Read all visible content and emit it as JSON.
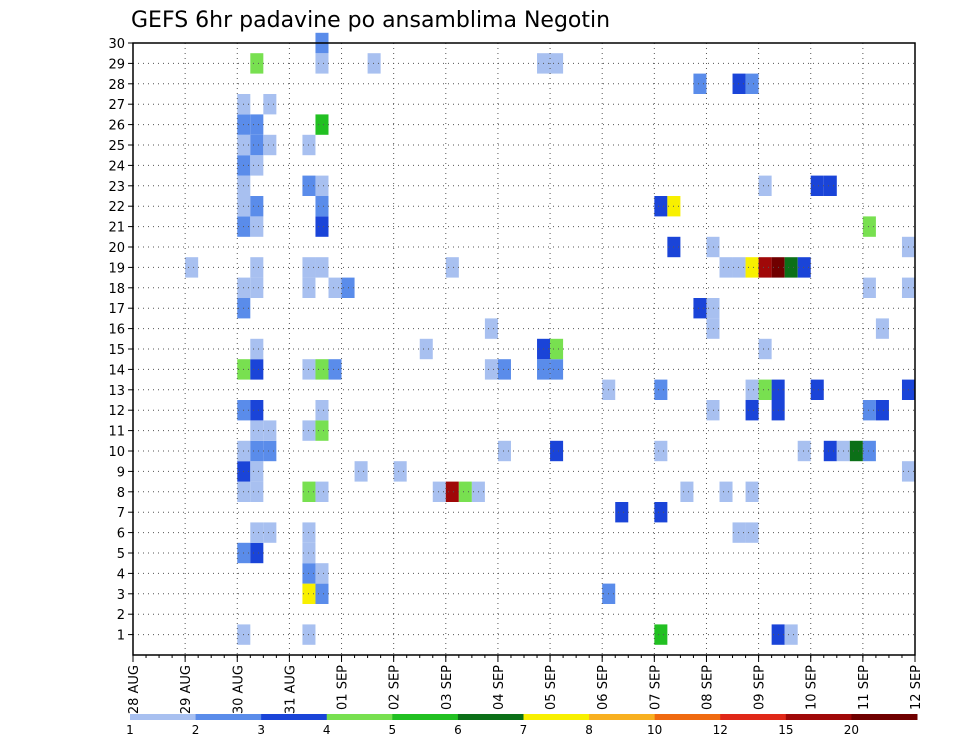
{
  "chart_data": {
    "type": "heatmap",
    "title": "GEFS 6hr padavine po ansamblima Negotin",
    "x_labels": [
      "28 AUG",
      "29 AUG",
      "30 AUG",
      "31 AUG",
      "01 SEP",
      "02 SEP",
      "03 SEP",
      "04 SEP",
      "05 SEP",
      "06 SEP",
      "07 SEP",
      "08 SEP",
      "09 SEP",
      "10 SEP",
      "11 SEP",
      "12 SEP"
    ],
    "x_range": [
      "28 AUG 00Z",
      "12 SEP 00Z"
    ],
    "time_step_hours": 6,
    "y_labels": [
      1,
      2,
      3,
      4,
      5,
      6,
      7,
      8,
      9,
      10,
      11,
      12,
      13,
      14,
      15,
      16,
      17,
      18,
      19,
      20,
      21,
      22,
      23,
      24,
      25,
      26,
      27,
      28,
      29,
      30
    ],
    "y_range": [
      0,
      30
    ],
    "grid": true,
    "legend": {
      "placement": "bottom",
      "labels": [
        "1",
        "2",
        "3",
        "4",
        "5",
        "6",
        "7",
        "8",
        "10",
        "12",
        "15",
        "20"
      ],
      "colors": [
        "#a8c0f0",
        "#5a8cea",
        "#1a44d8",
        "#78e050",
        "#22c022",
        "#0c7018",
        "#f8f000",
        "#f8b020",
        "#f06a10",
        "#e02818",
        "#a00808",
        "#700000"
      ]
    },
    "cells": [
      {
        "m": 1,
        "x": "30 AUG 00Z",
        "c": 0
      },
      {
        "m": 1,
        "x": "31 AUG 06Z",
        "c": 0
      },
      {
        "m": 1,
        "x": "07 SEP 00Z",
        "c": 4
      },
      {
        "m": 1,
        "x": "09 SEP 06Z",
        "c": 2
      },
      {
        "m": 1,
        "x": "09 SEP 12Z",
        "c": 0
      },
      {
        "m": 3,
        "x": "31 AUG 06Z",
        "c": 6
      },
      {
        "m": 3,
        "x": "31 AUG 12Z",
        "c": 1
      },
      {
        "m": 3,
        "x": "06 SEP 00Z",
        "c": 1
      },
      {
        "m": 4,
        "x": "31 AUG 06Z",
        "c": 1
      },
      {
        "m": 4,
        "x": "31 AUG 12Z",
        "c": 0
      },
      {
        "m": 5,
        "x": "30 AUG 00Z",
        "c": 1
      },
      {
        "m": 5,
        "x": "30 AUG 06Z",
        "c": 2
      },
      {
        "m": 5,
        "x": "31 AUG 06Z",
        "c": 0
      },
      {
        "m": 6,
        "x": "30 AUG 06Z",
        "c": 0
      },
      {
        "m": 6,
        "x": "30 AUG 12Z",
        "c": 0
      },
      {
        "m": 6,
        "x": "31 AUG 06Z",
        "c": 0
      },
      {
        "m": 6,
        "x": "08 SEP 12Z",
        "c": 0
      },
      {
        "m": 6,
        "x": "08 SEP 18Z",
        "c": 0
      },
      {
        "m": 7,
        "x": "06 SEP 06Z",
        "c": 2
      },
      {
        "m": 7,
        "x": "07 SEP 00Z",
        "c": 2
      },
      {
        "m": 8,
        "x": "30 AUG 00Z",
        "c": 0
      },
      {
        "m": 8,
        "x": "30 AUG 06Z",
        "c": 0
      },
      {
        "m": 8,
        "x": "31 AUG 06Z",
        "c": 3
      },
      {
        "m": 8,
        "x": "31 AUG 12Z",
        "c": 0
      },
      {
        "m": 8,
        "x": "02 SEP 18Z",
        "c": 0
      },
      {
        "m": 8,
        "x": "03 SEP 00Z",
        "c": 10
      },
      {
        "m": 8,
        "x": "03 SEP 06Z",
        "c": 3
      },
      {
        "m": 8,
        "x": "03 SEP 12Z",
        "c": 0
      },
      {
        "m": 8,
        "x": "07 SEP 12Z",
        "c": 0
      },
      {
        "m": 8,
        "x": "08 SEP 06Z",
        "c": 0
      },
      {
        "m": 8,
        "x": "08 SEP 18Z",
        "c": 0
      },
      {
        "m": 9,
        "x": "30 AUG 00Z",
        "c": 2
      },
      {
        "m": 9,
        "x": "30 AUG 06Z",
        "c": 0
      },
      {
        "m": 9,
        "x": "01 SEP 06Z",
        "c": 0
      },
      {
        "m": 9,
        "x": "02 SEP 00Z",
        "c": 0
      },
      {
        "m": 9,
        "x": "11 SEP 18Z",
        "c": 0
      },
      {
        "m": 9,
        "x": "12 SEP 00Z",
        "c": 2
      },
      {
        "m": 10,
        "x": "30 AUG 00Z",
        "c": 0
      },
      {
        "m": 10,
        "x": "30 AUG 06Z",
        "c": 1
      },
      {
        "m": 10,
        "x": "30 AUG 12Z",
        "c": 1
      },
      {
        "m": 10,
        "x": "04 SEP 00Z",
        "c": 0
      },
      {
        "m": 10,
        "x": "05 SEP 00Z",
        "c": 2
      },
      {
        "m": 10,
        "x": "07 SEP 00Z",
        "c": 0
      },
      {
        "m": 10,
        "x": "09 SEP 18Z",
        "c": 0
      },
      {
        "m": 10,
        "x": "10 SEP 06Z",
        "c": 2
      },
      {
        "m": 10,
        "x": "10 SEP 12Z",
        "c": 0
      },
      {
        "m": 10,
        "x": "10 SEP 18Z",
        "c": 5
      },
      {
        "m": 10,
        "x": "11 SEP 00Z",
        "c": 1
      },
      {
        "m": 11,
        "x": "30 AUG 06Z",
        "c": 0
      },
      {
        "m": 11,
        "x": "30 AUG 12Z",
        "c": 0
      },
      {
        "m": 11,
        "x": "31 AUG 06Z",
        "c": 0
      },
      {
        "m": 11,
        "x": "31 AUG 12Z",
        "c": 3
      },
      {
        "m": 12,
        "x": "30 AUG 00Z",
        "c": 1
      },
      {
        "m": 12,
        "x": "30 AUG 06Z",
        "c": 2
      },
      {
        "m": 12,
        "x": "31 AUG 12Z",
        "c": 0
      },
      {
        "m": 12,
        "x": "08 SEP 00Z",
        "c": 0
      },
      {
        "m": 12,
        "x": "08 SEP 18Z",
        "c": 2
      },
      {
        "m": 12,
        "x": "09 SEP 06Z",
        "c": 2
      },
      {
        "m": 12,
        "x": "11 SEP 00Z",
        "c": 1
      },
      {
        "m": 12,
        "x": "11 SEP 06Z",
        "c": 2
      },
      {
        "m": 13,
        "x": "06 SEP 00Z",
        "c": 0
      },
      {
        "m": 13,
        "x": "07 SEP 00Z",
        "c": 1
      },
      {
        "m": 13,
        "x": "08 SEP 18Z",
        "c": 0
      },
      {
        "m": 13,
        "x": "09 SEP 00Z",
        "c": 3
      },
      {
        "m": 13,
        "x": "09 SEP 06Z",
        "c": 2
      },
      {
        "m": 13,
        "x": "10 SEP 00Z",
        "c": 2
      },
      {
        "m": 13,
        "x": "11 SEP 18Z",
        "c": 2
      },
      {
        "m": 13,
        "x": "12 SEP 00Z",
        "c": 0
      },
      {
        "m": 14,
        "x": "30 AUG 00Z",
        "c": 3
      },
      {
        "m": 14,
        "x": "30 AUG 06Z",
        "c": 2
      },
      {
        "m": 14,
        "x": "31 AUG 06Z",
        "c": 0
      },
      {
        "m": 14,
        "x": "31 AUG 12Z",
        "c": 3
      },
      {
        "m": 14,
        "x": "31 AUG 18Z",
        "c": 1
      },
      {
        "m": 14,
        "x": "03 SEP 18Z",
        "c": 0
      },
      {
        "m": 14,
        "x": "04 SEP 00Z",
        "c": 1
      },
      {
        "m": 14,
        "x": "04 SEP 18Z",
        "c": 1
      },
      {
        "m": 14,
        "x": "05 SEP 00Z",
        "c": 1
      },
      {
        "m": 15,
        "x": "30 AUG 06Z",
        "c": 0
      },
      {
        "m": 15,
        "x": "02 SEP 12Z",
        "c": 0
      },
      {
        "m": 15,
        "x": "04 SEP 18Z",
        "c": 2
      },
      {
        "m": 15,
        "x": "05 SEP 00Z",
        "c": 3
      },
      {
        "m": 15,
        "x": "09 SEP 00Z",
        "c": 0
      },
      {
        "m": 16,
        "x": "03 SEP 18Z",
        "c": 0
      },
      {
        "m": 16,
        "x": "08 SEP 00Z",
        "c": 0
      },
      {
        "m": 16,
        "x": "11 SEP 06Z",
        "c": 0
      },
      {
        "m": 17,
        "x": "30 AUG 00Z",
        "c": 1
      },
      {
        "m": 17,
        "x": "07 SEP 18Z",
        "c": 2
      },
      {
        "m": 17,
        "x": "08 SEP 00Z",
        "c": 0
      },
      {
        "m": 18,
        "x": "30 AUG 00Z",
        "c": 0
      },
      {
        "m": 18,
        "x": "30 AUG 06Z",
        "c": 0
      },
      {
        "m": 18,
        "x": "31 AUG 06Z",
        "c": 0
      },
      {
        "m": 18,
        "x": "31 AUG 18Z",
        "c": 0
      },
      {
        "m": 18,
        "x": "01 SEP 00Z",
        "c": 1
      },
      {
        "m": 18,
        "x": "11 SEP 00Z",
        "c": 0
      },
      {
        "m": 18,
        "x": "11 SEP 18Z",
        "c": 0
      },
      {
        "m": 18,
        "x": "12 SEP 00Z",
        "c": 3
      },
      {
        "m": 19,
        "x": "29 AUG 00Z",
        "c": 0
      },
      {
        "m": 19,
        "x": "30 AUG 06Z",
        "c": 0
      },
      {
        "m": 19,
        "x": "31 AUG 06Z",
        "c": 0
      },
      {
        "m": 19,
        "x": "31 AUG 12Z",
        "c": 0
      },
      {
        "m": 19,
        "x": "03 SEP 00Z",
        "c": 0
      },
      {
        "m": 19,
        "x": "08 SEP 06Z",
        "c": 0
      },
      {
        "m": 19,
        "x": "08 SEP 12Z",
        "c": 0
      },
      {
        "m": 19,
        "x": "08 SEP 18Z",
        "c": 6
      },
      {
        "m": 19,
        "x": "09 SEP 00Z",
        "c": 10
      },
      {
        "m": 19,
        "x": "09 SEP 06Z",
        "c": 11
      },
      {
        "m": 19,
        "x": "09 SEP 12Z",
        "c": 5
      },
      {
        "m": 19,
        "x": "09 SEP 18Z",
        "c": 2
      },
      {
        "m": 20,
        "x": "07 SEP 06Z",
        "c": 2
      },
      {
        "m": 20,
        "x": "08 SEP 00Z",
        "c": 0
      },
      {
        "m": 20,
        "x": "11 SEP 18Z",
        "c": 0
      },
      {
        "m": 21,
        "x": "30 AUG 00Z",
        "c": 1
      },
      {
        "m": 21,
        "x": "30 AUG 06Z",
        "c": 0
      },
      {
        "m": 21,
        "x": "31 AUG 12Z",
        "c": 2
      },
      {
        "m": 21,
        "x": "11 SEP 00Z",
        "c": 3
      },
      {
        "m": 22,
        "x": "30 AUG 00Z",
        "c": 0
      },
      {
        "m": 22,
        "x": "30 AUG 06Z",
        "c": 1
      },
      {
        "m": 22,
        "x": "31 AUG 12Z",
        "c": 1
      },
      {
        "m": 22,
        "x": "07 SEP 00Z",
        "c": 2
      },
      {
        "m": 22,
        "x": "07 SEP 06Z",
        "c": 6
      },
      {
        "m": 23,
        "x": "30 AUG 00Z",
        "c": 0
      },
      {
        "m": 23,
        "x": "31 AUG 06Z",
        "c": 1
      },
      {
        "m": 23,
        "x": "31 AUG 12Z",
        "c": 0
      },
      {
        "m": 23,
        "x": "09 SEP 00Z",
        "c": 0
      },
      {
        "m": 23,
        "x": "10 SEP 00Z",
        "c": 2
      },
      {
        "m": 23,
        "x": "10 SEP 06Z",
        "c": 2
      },
      {
        "m": 24,
        "x": "30 AUG 00Z",
        "c": 1
      },
      {
        "m": 24,
        "x": "30 AUG 06Z",
        "c": 0
      },
      {
        "m": 25,
        "x": "30 AUG 00Z",
        "c": 0
      },
      {
        "m": 25,
        "x": "30 AUG 06Z",
        "c": 1
      },
      {
        "m": 25,
        "x": "30 AUG 12Z",
        "c": 0
      },
      {
        "m": 25,
        "x": "31 AUG 06Z",
        "c": 0
      },
      {
        "m": 26,
        "x": "30 AUG 00Z",
        "c": 1
      },
      {
        "m": 26,
        "x": "30 AUG 06Z",
        "c": 1
      },
      {
        "m": 26,
        "x": "31 AUG 12Z",
        "c": 4
      },
      {
        "m": 27,
        "x": "30 AUG 00Z",
        "c": 0
      },
      {
        "m": 27,
        "x": "30 AUG 12Z",
        "c": 0
      },
      {
        "m": 28,
        "x": "07 SEP 18Z",
        "c": 1
      },
      {
        "m": 28,
        "x": "08 SEP 12Z",
        "c": 2
      },
      {
        "m": 28,
        "x": "08 SEP 18Z",
        "c": 1
      },
      {
        "m": 29,
        "x": "30 AUG 06Z",
        "c": 3
      },
      {
        "m": 29,
        "x": "31 AUG 12Z",
        "c": 0
      },
      {
        "m": 29,
        "x": "01 SEP 12Z",
        "c": 0
      },
      {
        "m": 29,
        "x": "04 SEP 18Z",
        "c": 0
      },
      {
        "m": 29,
        "x": "05 SEP 00Z",
        "c": 0
      },
      {
        "m": 30,
        "x": "31 AUG 12Z",
        "c": 1
      }
    ]
  }
}
